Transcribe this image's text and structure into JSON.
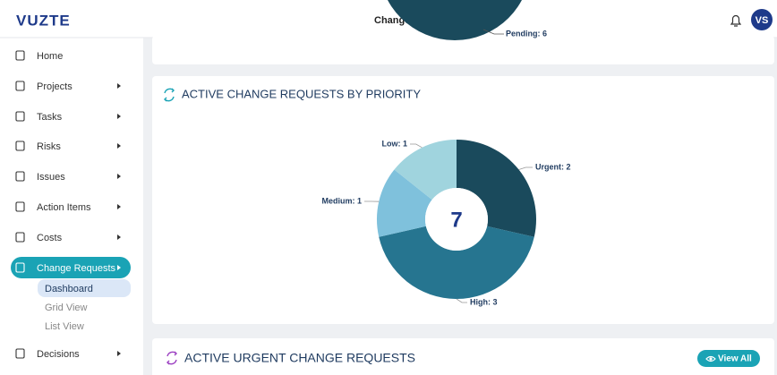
{
  "header": {
    "logo": "VUZTE",
    "title": "Change",
    "user_initials": "VS"
  },
  "sidebar": {
    "items": [
      {
        "label": "Home",
        "expandable": false
      },
      {
        "label": "Projects",
        "expandable": true
      },
      {
        "label": "Tasks",
        "expandable": true
      },
      {
        "label": "Risks",
        "expandable": true
      },
      {
        "label": "Issues",
        "expandable": true
      },
      {
        "label": "Action Items",
        "expandable": true
      },
      {
        "label": "Costs",
        "expandable": true
      },
      {
        "label": "Change Requests",
        "expandable": true,
        "active": true
      },
      {
        "label": "Decisions",
        "expandable": true
      }
    ],
    "subitems": [
      {
        "label": "Dashboard",
        "active": true
      },
      {
        "label": "Grid View"
      },
      {
        "label": "List View"
      }
    ]
  },
  "top_card": {
    "label": "Pending: 6"
  },
  "chart_data": {
    "type": "donut",
    "title": "ACTIVE CHANGE REQUESTS BY PRIORITY",
    "categories": [
      "Urgent",
      "High",
      "Medium",
      "Low"
    ],
    "values": [
      2,
      3,
      1,
      1
    ],
    "value_labels": [
      "Urgent: 2",
      "High: 3",
      "Medium: 1",
      "Low: 1"
    ],
    "colors": [
      "#1a4a5c",
      "#267590",
      "#7fc1dc",
      "#a0d4de"
    ],
    "total": 7
  },
  "bottom_card": {
    "title": "ACTIVE URGENT CHANGE REQUESTS",
    "button": "View All"
  }
}
